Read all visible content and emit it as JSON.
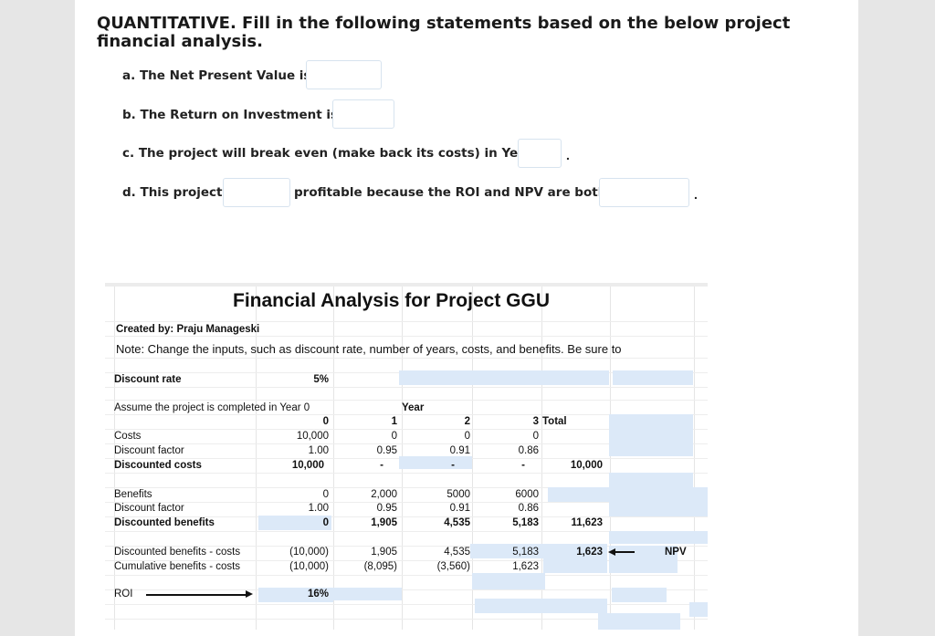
{
  "heading": "QUANTITATIVE. Fill in the following statements based on the below project financial analysis.",
  "questions": {
    "a": "a. The Net Present Value is",
    "b": "b. The Return on Investment is",
    "c": "c. The project will break even (make back its costs) in Year",
    "c_end": ".",
    "d_pre": "d. This project",
    "d_post": "profitable because the ROI and NPV are both",
    "d_end": "."
  },
  "sheet": {
    "title": "Financial Analysis for Project GGU",
    "created_by": "Created by: Praju Manageski",
    "note": "Note: Change the inputs, such as discount rate, number of years, costs, and benefits. Be sure to",
    "discount_rate_label": "Discount rate",
    "discount_rate_value": "5%",
    "assume_label": "Assume the project is completed in Year 0",
    "year_label": "Year",
    "years": [
      "0",
      "1",
      "2",
      "3"
    ],
    "total_label": "Total",
    "costs_label": "Costs",
    "costs": [
      "10,000",
      "0",
      "0",
      "0"
    ],
    "discount_factor_label": "Discount factor",
    "cost_factors": [
      "1.00",
      "0.95",
      "0.91",
      "0.86"
    ],
    "discounted_costs_label": "Discounted costs",
    "discounted_costs": [
      "10,000",
      "-",
      "-",
      "-"
    ],
    "discounted_costs_total": "10,000",
    "benefits_label": "Benefits",
    "benefits": [
      "0",
      "2,000",
      "5000",
      "6000"
    ],
    "benefit_factors": [
      "1.00",
      "0.95",
      "0.91",
      "0.86"
    ],
    "discounted_benefits_label": "Discounted benefits",
    "discounted_benefits": [
      "0",
      "1,905",
      "4,535",
      "5,183"
    ],
    "discounted_benefits_total": "11,623",
    "net_label": "Discounted benefits - costs",
    "net": [
      "(10,000)",
      "1,905",
      "4,535",
      "5,183"
    ],
    "net_total": "1,623",
    "npv_label": "NPV",
    "cumulative_label": "Cumulative benefits - costs",
    "cumulative": [
      "(10,000)",
      "(8,095)",
      "(3,560)",
      "1,623"
    ],
    "roi_label": "ROI",
    "roi_value": "16%"
  }
}
